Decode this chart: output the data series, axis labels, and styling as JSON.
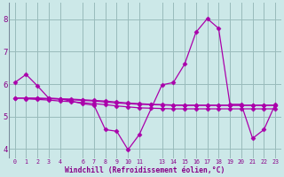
{
  "xlabel": "Windchill (Refroidissement éolien,°C)",
  "background_color": "#cce8e8",
  "line_color": "#aa00aa",
  "grid_color": "#99bbbb",
  "x_hours": [
    0,
    1,
    2,
    3,
    4,
    6,
    7,
    8,
    9,
    10,
    11,
    13,
    14,
    15,
    16,
    17,
    18,
    19,
    20,
    21,
    22,
    23
  ],
  "x_all": [
    0,
    1,
    2,
    3,
    4,
    5,
    6,
    7,
    8,
    9,
    10,
    11,
    12,
    13,
    14,
    15,
    16,
    17,
    18,
    19,
    20,
    21,
    22,
    23
  ],
  "ylim": [
    3.7,
    8.5
  ],
  "yticks": [
    4,
    5,
    6,
    7,
    8
  ],
  "series1_x": [
    0,
    1,
    2,
    3,
    4,
    6,
    7,
    8,
    9,
    10,
    11,
    13,
    14,
    15,
    16,
    17,
    18,
    19,
    20,
    21,
    22,
    23
  ],
  "series1_y": [
    6.05,
    6.3,
    5.95,
    5.57,
    5.55,
    5.4,
    5.35,
    4.6,
    4.55,
    3.98,
    4.45,
    5.98,
    6.05,
    6.62,
    7.6,
    8.02,
    7.72,
    5.38,
    5.38,
    4.33,
    4.6,
    5.38
  ],
  "series2_x": [
    0,
    1,
    2,
    3,
    4,
    5,
    6,
    7,
    8,
    9,
    10,
    11,
    12,
    13,
    14,
    15,
    16,
    17,
    18,
    19,
    20,
    21,
    22,
    23
  ],
  "series2_y": [
    5.57,
    5.57,
    5.57,
    5.56,
    5.55,
    5.54,
    5.52,
    5.5,
    5.48,
    5.45,
    5.42,
    5.4,
    5.38,
    5.37,
    5.36,
    5.35,
    5.35,
    5.35,
    5.35,
    5.35,
    5.35,
    5.35,
    5.35,
    5.35
  ],
  "series3_x": [
    0,
    1,
    2,
    3,
    4,
    5,
    6,
    7,
    8,
    9,
    10,
    11,
    12,
    13,
    14,
    15,
    16,
    17,
    18,
    19,
    20,
    21,
    22,
    23
  ],
  "series3_y": [
    5.57,
    5.57,
    5.56,
    5.55,
    5.54,
    5.52,
    5.5,
    5.48,
    5.45,
    5.42,
    5.4,
    5.38,
    5.37,
    5.36,
    5.35,
    5.35,
    5.35,
    5.35,
    5.35,
    5.35,
    5.35,
    5.35,
    5.35,
    5.35
  ],
  "series4_x": [
    1,
    2,
    3,
    4,
    5,
    6,
    7,
    8,
    9,
    10,
    11,
    12,
    13,
    14,
    15,
    16,
    17,
    18,
    19,
    20,
    21,
    22,
    23
  ],
  "series4_y": [
    5.55,
    5.53,
    5.51,
    5.48,
    5.46,
    5.43,
    5.4,
    5.37,
    5.33,
    5.3,
    5.27,
    5.26,
    5.25,
    5.24,
    5.24,
    5.24,
    5.24,
    5.24,
    5.24,
    5.24,
    5.24,
    5.24,
    5.24
  ]
}
